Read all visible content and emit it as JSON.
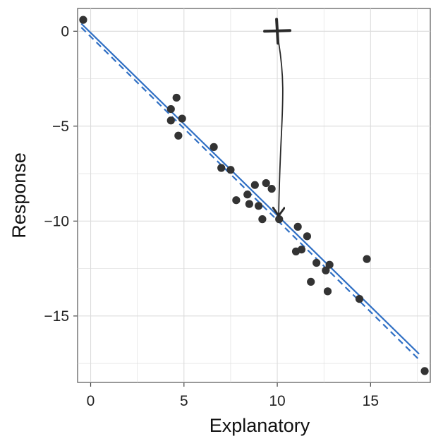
{
  "chart_data": {
    "type": "scatter",
    "title": "",
    "xlabel": "Explanatory",
    "ylabel": "Response",
    "xlim": [
      -0.7,
      18.2
    ],
    "ylim": [
      -18.5,
      1.2
    ],
    "x_ticks": [
      0,
      5,
      10,
      15
    ],
    "y_ticks": [
      0,
      -5,
      -10,
      -15
    ],
    "x_tick_labels": [
      "0",
      "5",
      "10",
      "15"
    ],
    "y_tick_labels": [
      "0",
      "−5",
      "−10",
      "−15"
    ],
    "grid": true,
    "legend": "none",
    "points": [
      {
        "x": -0.4,
        "y": 0.6
      },
      {
        "x": 4.3,
        "y": -4.1
      },
      {
        "x": 4.3,
        "y": -4.7
      },
      {
        "x": 4.6,
        "y": -3.5
      },
      {
        "x": 4.7,
        "y": -5.5
      },
      {
        "x": 4.9,
        "y": -4.6
      },
      {
        "x": 6.6,
        "y": -6.1
      },
      {
        "x": 7.0,
        "y": -7.2
      },
      {
        "x": 7.5,
        "y": -7.3
      },
      {
        "x": 7.8,
        "y": -8.9
      },
      {
        "x": 8.4,
        "y": -8.6
      },
      {
        "x": 8.5,
        "y": -9.1
      },
      {
        "x": 8.8,
        "y": -8.1
      },
      {
        "x": 9.0,
        "y": -9.2
      },
      {
        "x": 9.2,
        "y": -9.9
      },
      {
        "x": 9.4,
        "y": -8.0
      },
      {
        "x": 9.7,
        "y": -8.3
      },
      {
        "x": 10.1,
        "y": -9.9
      },
      {
        "x": 11.0,
        "y": -11.6
      },
      {
        "x": 11.1,
        "y": -10.3
      },
      {
        "x": 11.3,
        "y": -11.5
      },
      {
        "x": 11.6,
        "y": -10.8
      },
      {
        "x": 11.8,
        "y": -13.2
      },
      {
        "x": 12.1,
        "y": -12.2
      },
      {
        "x": 12.6,
        "y": -12.6
      },
      {
        "x": 12.7,
        "y": -13.7
      },
      {
        "x": 12.8,
        "y": -12.3
      },
      {
        "x": 14.4,
        "y": -14.1
      },
      {
        "x": 14.8,
        "y": -12.0
      },
      {
        "x": 17.9,
        "y": -17.9
      }
    ],
    "fit_lines": [
      {
        "style": "solid",
        "x": [
          -0.5,
          17.6
        ],
        "y": [
          0.4,
          -17.0
        ]
      },
      {
        "style": "dashed",
        "x": [
          -0.5,
          17.6
        ],
        "y": [
          0.2,
          -17.3
        ]
      }
    ],
    "annotation": {
      "marker": {
        "x": 10.0,
        "y": 0.0
      },
      "arrow_to": {
        "x": 10.0,
        "y": -9.8
      }
    },
    "colors": {
      "points": "#333333",
      "fit_line": "#2f6fc4",
      "grid": "#dcdcdc",
      "annotation": "#2a2a2a"
    }
  }
}
